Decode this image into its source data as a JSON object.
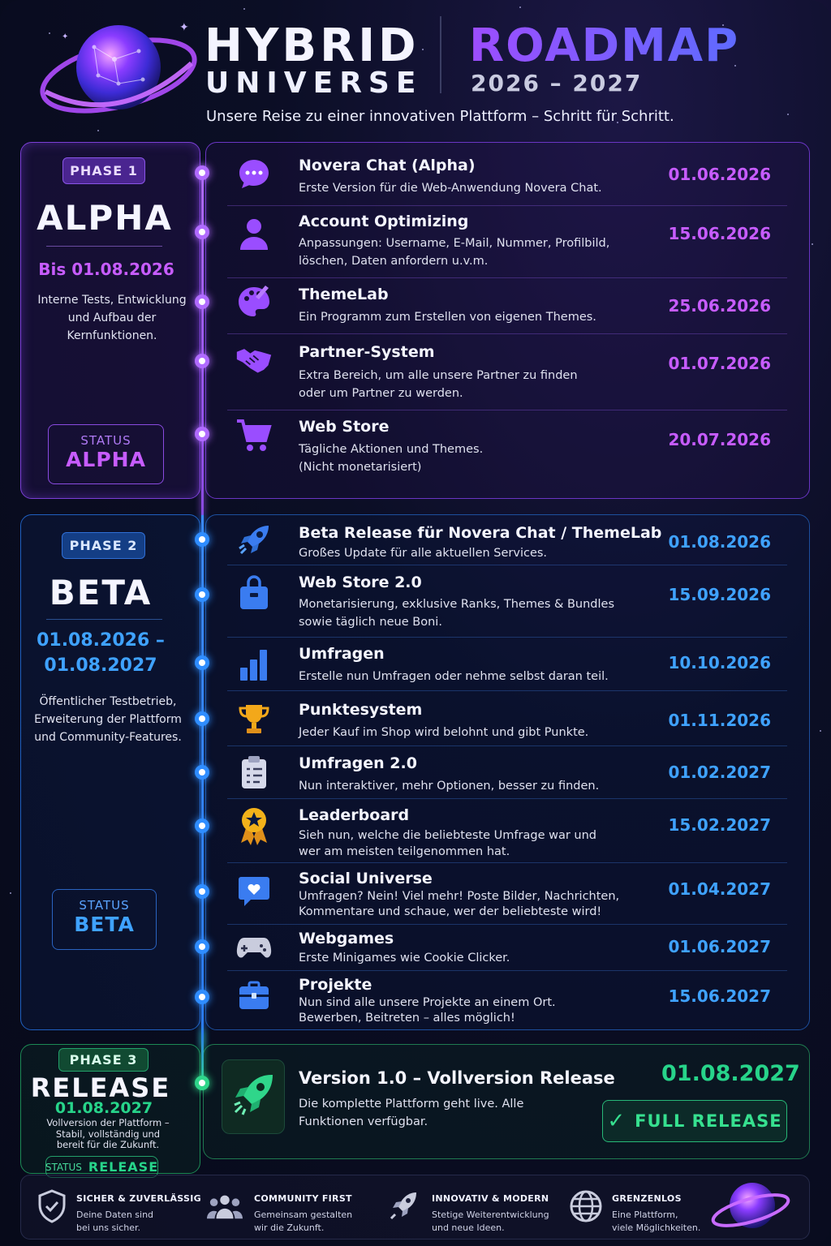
{
  "header": {
    "title_line1": "HYBRID",
    "title_line2": "UNIVERSE",
    "roadmap": "ROADMAP",
    "years": "2026 – 2027",
    "subtitle": "Unsere Reise zu einer innovativen Plattform – Schritt für Schritt."
  },
  "colors": {
    "alpha": "#c75cff",
    "beta": "#3fa2ff",
    "release": "#27d48a"
  },
  "phases": {
    "alpha": {
      "badge": "PHASE 1",
      "name": "ALPHA",
      "date": "Bis 01.08.2026",
      "desc": "Interne Tests, Entwicklung und Aufbau der Kernfunktionen.",
      "status_label": "STATUS",
      "status_value": "ALPHA"
    },
    "beta": {
      "badge": "PHASE 2",
      "name": "BETA",
      "date_line1": "01.08.2026 –",
      "date_line2": "01.08.2027",
      "desc": "Öffentlicher Testbetrieb, Erweiterung der Plattform und Community-Features.",
      "status_label": "STATUS",
      "status_value": "BETA"
    },
    "release": {
      "badge": "PHASE 3",
      "name": "RELEASE",
      "date": "01.08.2027",
      "desc": "Vollversion der Plattform – Stabil, vollständig und bereit für die Zukunft.",
      "status_label": "STATUS",
      "status_value": "RELEASE"
    }
  },
  "alpha_items": [
    {
      "icon": "chat-bubble-icon",
      "title": "Novera Chat (Alpha)",
      "desc": "Erste Version für die Web-Anwendung Novera Chat.",
      "date": "01.06.2026"
    },
    {
      "icon": "user-icon",
      "title": "Account Optimizing",
      "desc": "Anpassungen: Username, E-Mail, Nummer, Profilbild, löschen, Daten anfordern u.v.m.",
      "date": "15.06.2026"
    },
    {
      "icon": "palette-icon",
      "title": "ThemeLab",
      "desc": "Ein Programm zum Erstellen von eigenen Themes.",
      "date": "25.06.2026"
    },
    {
      "icon": "handshake-icon",
      "title": "Partner-System",
      "desc": "Extra Bereich, um alle unsere Partner zu finden oder um Partner zu werden.",
      "date": "01.07.2026"
    },
    {
      "icon": "cart-icon",
      "title": "Web Store",
      "desc": "Tägliche Aktionen und Themes. (Nicht monetarisiert)",
      "date": "20.07.2026"
    }
  ],
  "beta_items": [
    {
      "icon": "rocket-icon",
      "title": "Beta Release für Novera Chat / ThemeLab",
      "desc": "Großes Update für alle aktuellen Services.",
      "date": "01.08.2026"
    },
    {
      "icon": "shopping-bag-icon",
      "title": "Web Store 2.0",
      "desc": "Monetarisierung, exklusive Ranks, Themes & Bundles sowie täglich neue Boni.",
      "date": "15.09.2026"
    },
    {
      "icon": "bar-chart-icon",
      "title": "Umfragen",
      "desc": "Erstelle nun Umfragen oder nehme selbst daran teil.",
      "date": "10.10.2026"
    },
    {
      "icon": "trophy-icon",
      "title": "Punktesystem",
      "desc": "Jeder Kauf im Shop wird belohnt und gibt Punkte.",
      "date": "01.11.2026"
    },
    {
      "icon": "clipboard-icon",
      "title": "Umfragen 2.0",
      "desc": "Nun interaktiver, mehr Optionen, besser zu finden.",
      "date": "01.02.2027"
    },
    {
      "icon": "medal-icon",
      "title": "Leaderboard",
      "desc": "Sieh nun, welche die beliebteste Umfrage war und wer am meisten teilgenommen hat.",
      "date": "15.02.2027"
    },
    {
      "icon": "heart-message-icon",
      "title": "Social Universe",
      "desc": "Umfragen? Nein! Viel mehr! Poste Bilder, Nachrichten, Kommentare und schaue, wer der beliebteste wird!",
      "date": "01.04.2027"
    },
    {
      "icon": "gamepad-icon",
      "title": "Webgames",
      "desc": "Erste Minigames wie Cookie Clicker.",
      "date": "01.06.2027"
    },
    {
      "icon": "briefcase-icon",
      "title": "Projekte",
      "desc": "Nun sind alle unsere Projekte an einem Ort. Bewerben, Beitreten – alles möglich!",
      "date": "15.06.2027"
    }
  ],
  "release_item": {
    "icon": "rocket-icon",
    "title": "Version 1.0 – Vollversion Release",
    "desc": "Die komplette Plattform geht live. Alle Funktionen verfügbar.",
    "date": "01.08.2027",
    "button": "FULL RELEASE"
  },
  "footer": [
    {
      "icon": "shield-check-icon",
      "title": "SICHER & ZUVERLÄSSIG",
      "desc": "Deine Daten sind bei uns sicher."
    },
    {
      "icon": "community-icon",
      "title": "COMMUNITY FIRST",
      "desc": "Gemeinsam gestalten wir die Zukunft."
    },
    {
      "icon": "rocket-icon",
      "title": "INNOVATIV & MODERN",
      "desc": "Stetige Weiterentwicklung und neue Ideen."
    },
    {
      "icon": "globe-icon",
      "title": "GRENZENLOS",
      "desc": "Eine Plattform, viele Möglichkeiten."
    }
  ]
}
